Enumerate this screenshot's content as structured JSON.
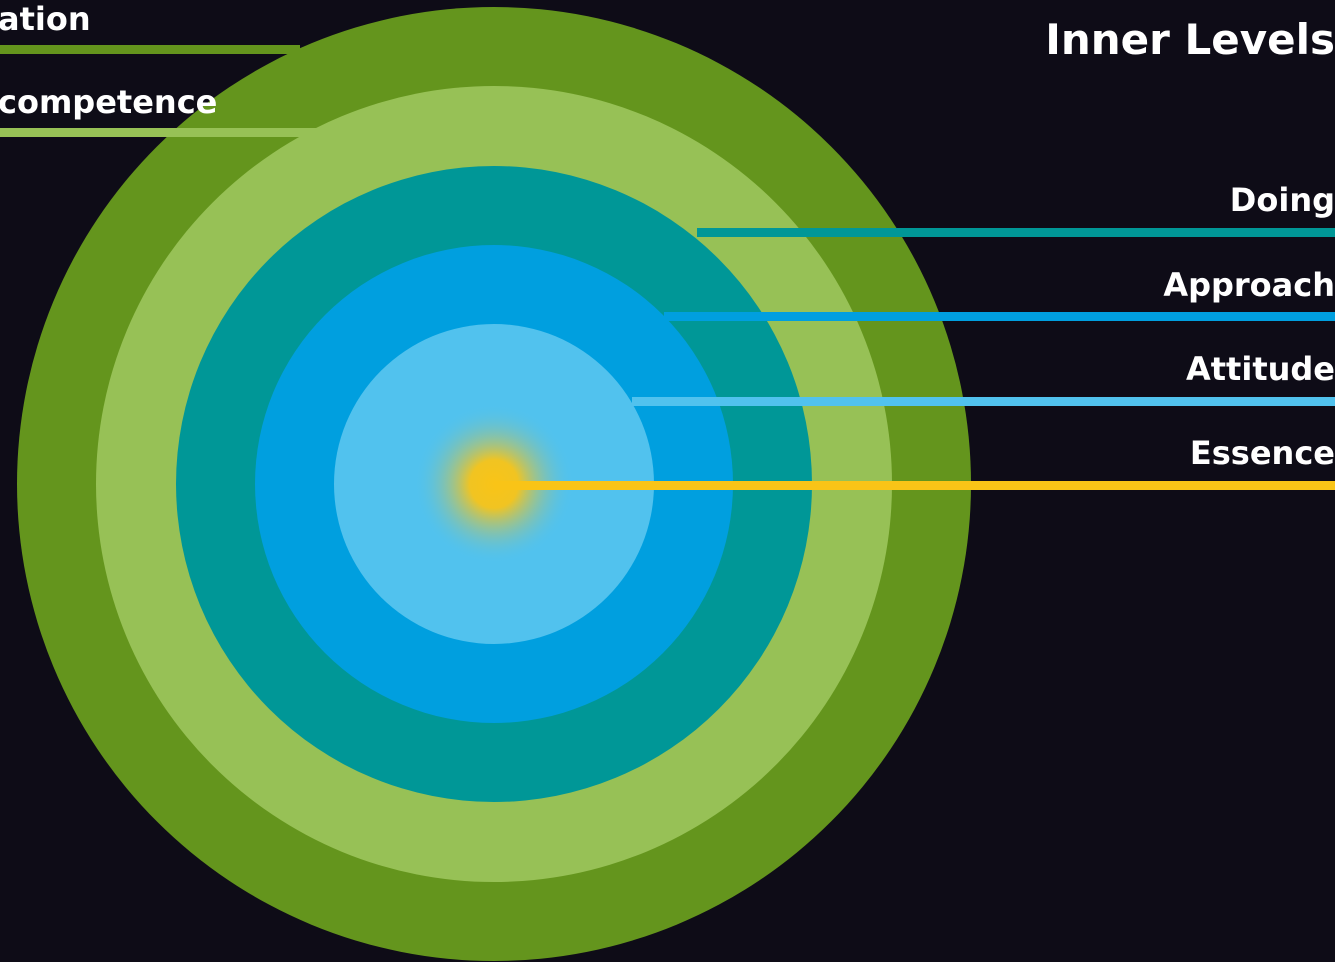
{
  "title": "Inner Levels",
  "outer_labels": [
    {
      "key": "outer-1",
      "text": "ation"
    },
    {
      "key": "outer-2",
      "text": "competence"
    }
  ],
  "inner_labels": [
    {
      "key": "doing",
      "text": "Doing"
    },
    {
      "key": "approach",
      "text": "Approach"
    },
    {
      "key": "attitude",
      "text": "Attitude"
    },
    {
      "key": "essence",
      "text": "Essence"
    }
  ],
  "colors": {
    "background": "#0e0c17",
    "ring_outer_green": "#64951d",
    "ring_light_green": "#97c156",
    "ring_teal": "#009797",
    "ring_blue": "#009fdf",
    "ring_light_blue": "#51c2ee",
    "core_yellow": "#f9c417",
    "line_doing": "#009797",
    "line_approach": "#009fdf",
    "line_attitude": "#51c2ee",
    "line_essence": "#f9c417",
    "line_outer_1": "#64951d",
    "line_outer_2": "#97c156",
    "text": "#ffffff"
  }
}
